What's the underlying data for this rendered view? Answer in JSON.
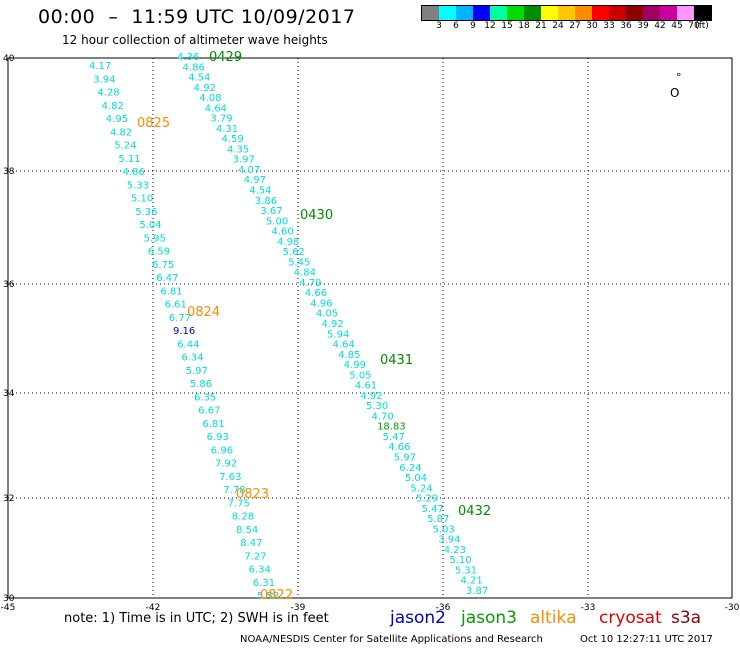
{
  "header": {
    "title": "00:00  –  11:59 UTC 10/09/2017",
    "subtitle": "12 hour collection of altimeter wave heights"
  },
  "colorbar": {
    "colors": [
      "#808080",
      "#00ffff",
      "#00b4ff",
      "#0000ff",
      "#00ffa0",
      "#00dc00",
      "#008c00",
      "#ffff00",
      "#ffc800",
      "#ff8c00",
      "#ff0000",
      "#c80000",
      "#8c0000",
      "#a00064",
      "#c800a0",
      "#ff96ff",
      "#000000"
    ],
    "labels": [
      "3",
      "6",
      "9",
      "12",
      "15",
      "18",
      "21",
      "24",
      "27",
      "30",
      "33",
      "36",
      "39",
      "42",
      "45",
      "70",
      "(ft)"
    ]
  },
  "map": {
    "x_ticks": [
      "-45",
      "-42",
      "-39",
      "-36",
      "-33",
      "-30"
    ],
    "y_ticks": [
      "40",
      "38",
      "36",
      "34",
      "32",
      "30"
    ],
    "tracks": [
      {
        "color": "#00dddd",
        "label": {
          "text": "0825",
          "color": "#ff8c00"
        },
        "values": [
          "4.17",
          "3.94",
          "4.28",
          "4.82",
          "4.95",
          "4.82",
          "5.24",
          "5.11",
          "4.86",
          "5.33",
          "5.10",
          "5.36",
          "5.04",
          "5.95",
          "6.59",
          "6.75",
          "6.47",
          "6.81",
          "6.61",
          "6.77",
          "9.16",
          "6.44",
          "6.34",
          "5.97",
          "5.86",
          "6.35",
          "6.67",
          "6.81",
          "6.93",
          "6.96",
          "7.92",
          "7.63",
          "7.78",
          "7.75",
          "8.28",
          "8.54",
          "8.47",
          "7.27",
          "6.34",
          "6.31",
          "5.58"
        ]
      },
      {
        "color": "#00dddd",
        "label": {
          "text": "0429",
          "color": "#008c00"
        },
        "values": [
          "4.36",
          "4.86",
          "4.54",
          "4.92",
          "4.08",
          "4.64",
          "3.79",
          "4.31",
          "4.59",
          "4.35",
          "3.97",
          "4.07",
          "4.97",
          "4.54",
          "3.86",
          "3.67",
          "5.00",
          "4.60",
          "4.98",
          "5.62",
          "5.45",
          "4.84",
          "4.79",
          "4.66",
          "4.96",
          "4.05",
          "4.92",
          "5.94",
          "4.64",
          "4.85",
          "4.99",
          "5.05",
          "4.61",
          "4.92",
          "5.30",
          "4.70",
          "18.83",
          "5.47",
          "4.66",
          "5.97",
          "6.24",
          "5.04",
          "5.24",
          "5.29",
          "5.47",
          "5.87",
          "5.03",
          "3.94",
          "4.23",
          "5.10",
          "5.31",
          "4.21",
          "3.87"
        ]
      }
    ],
    "labels": [
      {
        "text": "0825",
        "color": "#ff8c00"
      },
      {
        "text": "0824",
        "color": "#ff8c00"
      },
      {
        "text": "0823",
        "color": "#ff8c00"
      },
      {
        "text": "0822",
        "color": "#ff8c00"
      },
      {
        "text": "0429",
        "color": "#008c00"
      },
      {
        "text": "0430",
        "color": "#008c00"
      },
      {
        "text": "0431",
        "color": "#008c00"
      },
      {
        "text": "0432",
        "color": "#008c00"
      }
    ],
    "island_label": "O",
    "island_dot": "°"
  },
  "footer": {
    "note": "note:  1) Time is in UTC;  2) SWH is in feet",
    "legend": [
      {
        "text": "jason2",
        "color": "#0000cc"
      },
      {
        "text": "jason3",
        "color": "#00a000"
      },
      {
        "text": "altika",
        "color": "#ff8c00"
      },
      {
        "text": "cryosat",
        "color": "#dd0000"
      },
      {
        "text": "s3a",
        "color": "#8b0000"
      }
    ],
    "credit": "NOAA/NESDIS Center for Satellite Applications and Research",
    "updated": "Oct 10 12:27:11 UTC 2017"
  }
}
